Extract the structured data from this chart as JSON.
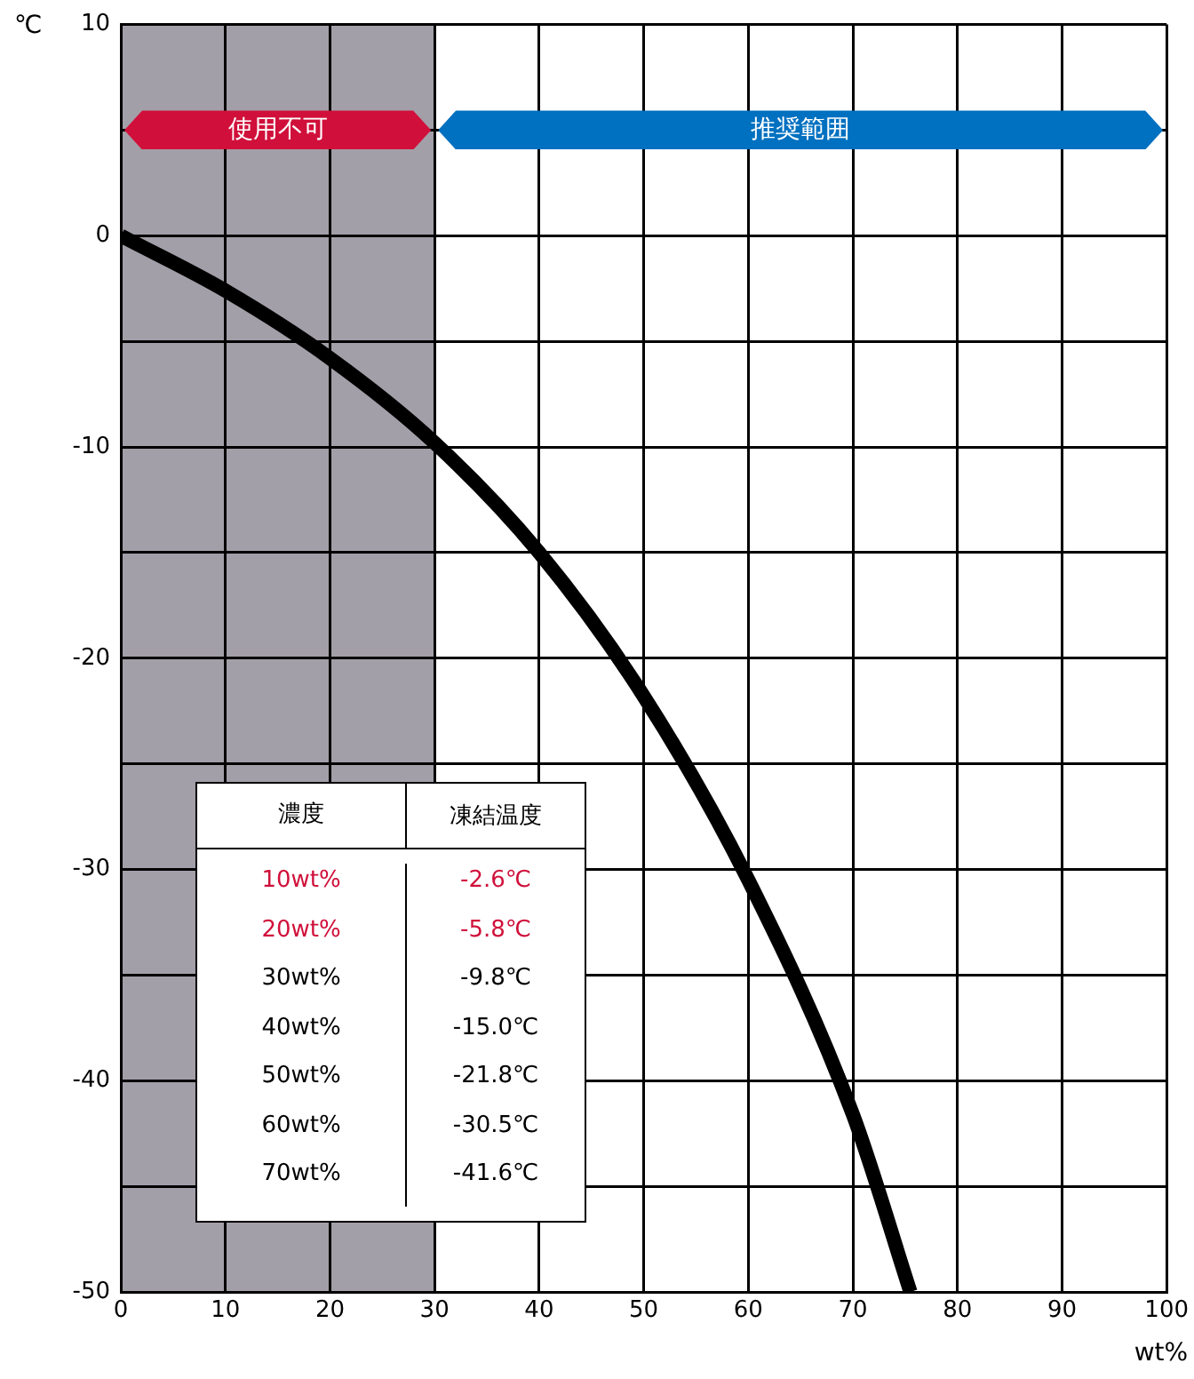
{
  "chart_data": {
    "type": "line",
    "xlabel": "wt%",
    "ylabel": "℃",
    "x": [
      0,
      10,
      20,
      30,
      40,
      50,
      60,
      70,
      75.5
    ],
    "series": [
      {
        "color": "#000000",
        "values": [
          0,
          -2.6,
          -5.8,
          -9.8,
          -15.0,
          -21.8,
          -30.5,
          -41.6,
          -50
        ]
      }
    ],
    "xlim": [
      0,
      100
    ],
    "xticks": [
      0,
      10,
      20,
      30,
      40,
      50,
      60,
      70,
      80,
      90,
      100
    ],
    "ylim": [
      -50,
      10
    ],
    "yticks": [
      -50,
      {
        "value": -45,
        "label": null
      },
      -40,
      {
        "value": -35,
        "label": null
      },
      -30,
      {
        "value": -25,
        "label": null
      },
      -20,
      {
        "value": -15,
        "label": null
      },
      -10,
      {
        "value": -5,
        "label": null
      },
      0,
      {
        "value": 5,
        "label": null
      },
      10
    ],
    "grid": true,
    "legend": false,
    "marker": "none",
    "line_style": "solid",
    "bands": [
      {
        "axis": "x",
        "from": 0,
        "to": 30,
        "color": "#a39fa8"
      }
    ],
    "annotations": [
      "使用不可",
      "推奨範囲",
      "濃度",
      "凍結温度",
      "10wt%",
      "-2.6℃",
      "20wt%",
      "-5.8℃",
      "30wt%",
      "-9.8℃",
      "40wt%",
      "-15.0℃",
      "50wt%",
      "-21.8℃",
      "60wt%",
      "-30.5℃",
      "70wt%",
      "-41.6℃"
    ]
  }
}
